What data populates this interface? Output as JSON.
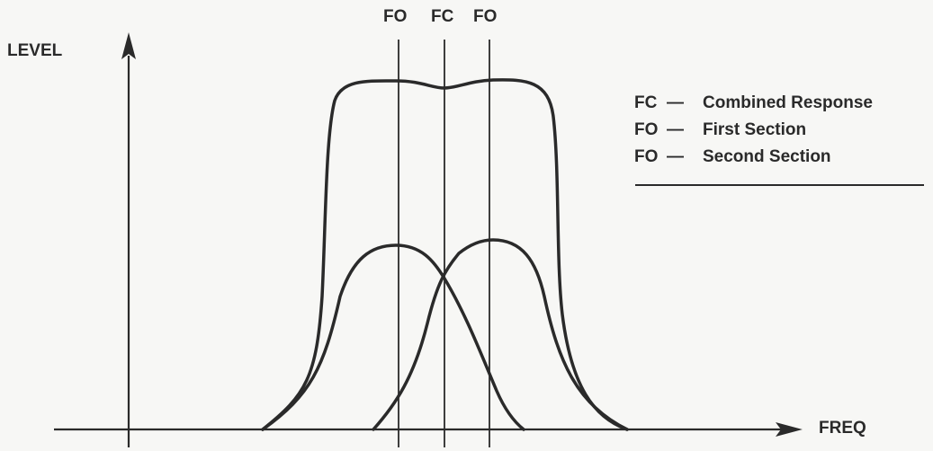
{
  "axes": {
    "y_label": "LEVEL",
    "x_label": "FREQ"
  },
  "markers": {
    "left": "FO",
    "center": "FC",
    "right": "FO"
  },
  "legend": [
    {
      "code": "FC",
      "dash": "—",
      "text": "Combined Response"
    },
    {
      "code": "FO",
      "dash": "—",
      "text": "First Section"
    },
    {
      "code": "FO",
      "dash": "—",
      "text": "Second Section"
    }
  ],
  "colors": {
    "ink": "#2a2a2a",
    "paper": "#f7f7f5"
  }
}
